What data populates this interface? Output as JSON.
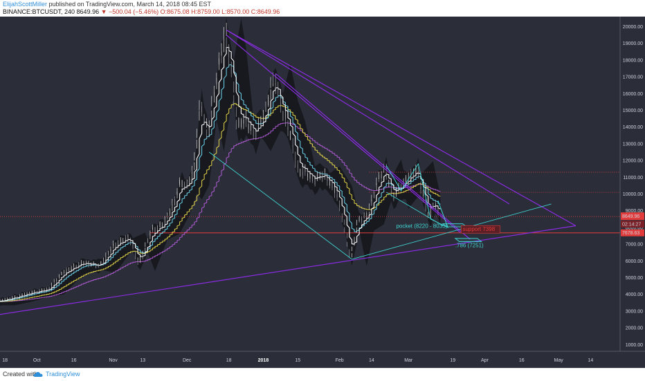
{
  "header": {
    "author": "ElijahScottMiller",
    "published": "published on TradingView.com, March 14, 2018 08:45 EST",
    "symbol": "BINANCE:BTCUSDT, 240",
    "last": "8649.96",
    "change": "▼ −500.04 (−5.46%)",
    "ohlc": "O:8675.08 H:8759.00 L:8570.00 C:8649.96"
  },
  "footer": {
    "created": "Created with",
    "brand": "TradingView"
  },
  "colors": {
    "bg": "#2b2e39",
    "axis_bg": "#2b2e39",
    "purple": "#8a2be2",
    "cyan": "#3fd3d0",
    "red": "#e23b3b",
    "price": "#d9d9d9",
    "ema_fast": "#ffffff",
    "ema_mid": "#6fd7f0",
    "ema_slow": "#e6d84a",
    "ema_long": "#b15bd6",
    "ichimoku": "#000000"
  },
  "chart_data": {
    "type": "line",
    "x_axis": {
      "type": "date",
      "range": [
        "2017-09-16",
        "2018-05-26"
      ],
      "ticks": [
        {
          "date": "2017-09-18",
          "label": "18"
        },
        {
          "date": "2017-10-01",
          "label": "Oct"
        },
        {
          "date": "2017-10-16",
          "label": "16"
        },
        {
          "date": "2017-11-01",
          "label": "Nov"
        },
        {
          "date": "2017-11-13",
          "label": "13"
        },
        {
          "date": "2017-12-01",
          "label": "Dec"
        },
        {
          "date": "2017-12-18",
          "label": "18"
        },
        {
          "date": "2018-01-01",
          "label": "2018",
          "bold": true
        },
        {
          "date": "2018-01-15",
          "label": "15"
        },
        {
          "date": "2018-02-01",
          "label": "Feb"
        },
        {
          "date": "2018-02-14",
          "label": "14"
        },
        {
          "date": "2018-03-01",
          "label": "Mar"
        },
        {
          "date": "2018-03-19",
          "label": "19"
        },
        {
          "date": "2018-04-01",
          "label": "Apr"
        },
        {
          "date": "2018-04-16",
          "label": "16"
        },
        {
          "date": "2018-05-01",
          "label": "May"
        },
        {
          "date": "2018-05-14",
          "label": "14"
        }
      ]
    },
    "y_axis": {
      "range": [
        600,
        20600
      ],
      "ticks": [
        1000,
        2000,
        3000,
        4000,
        5000,
        6000,
        7000,
        8000,
        9000,
        10000,
        11000,
        12000,
        13000,
        14000,
        15000,
        16000,
        17000,
        18000,
        19000,
        20000
      ]
    },
    "price_series": [
      [
        "2017-09-16",
        3600
      ],
      [
        "2017-09-22",
        3800
      ],
      [
        "2017-09-29",
        4100
      ],
      [
        "2017-10-06",
        4300
      ],
      [
        "2017-10-12",
        5300
      ],
      [
        "2017-10-20",
        5900
      ],
      [
        "2017-10-27",
        5700
      ],
      [
        "2017-11-02",
        7000
      ],
      [
        "2017-11-08",
        7400
      ],
      [
        "2017-11-12",
        5800
      ],
      [
        "2017-11-17",
        7800
      ],
      [
        "2017-11-22",
        8200
      ],
      [
        "2017-11-26",
        9400
      ],
      [
        "2017-11-29",
        10800
      ],
      [
        "2017-12-01",
        10400
      ],
      [
        "2017-12-04",
        11300
      ],
      [
        "2017-12-07",
        15500
      ],
      [
        "2017-12-10",
        13500
      ],
      [
        "2017-12-13",
        16500
      ],
      [
        "2017-12-17",
        19700
      ],
      [
        "2017-12-19",
        18000
      ],
      [
        "2017-12-22",
        14000
      ],
      [
        "2017-12-25",
        14500
      ],
      [
        "2017-12-29",
        13500
      ],
      [
        "2018-01-02",
        14800
      ],
      [
        "2018-01-06",
        17100
      ],
      [
        "2018-01-09",
        15000
      ],
      [
        "2018-01-12",
        13800
      ],
      [
        "2018-01-16",
        11200
      ],
      [
        "2018-01-18",
        11400
      ],
      [
        "2018-01-22",
        10800
      ],
      [
        "2018-01-26",
        11200
      ],
      [
        "2018-01-31",
        10100
      ],
      [
        "2018-02-03",
        8400
      ],
      [
        "2018-02-06",
        6100
      ],
      [
        "2018-02-09",
        8400
      ],
      [
        "2018-02-13",
        8800
      ],
      [
        "2018-02-17",
        10800
      ],
      [
        "2018-02-20",
        11600
      ],
      [
        "2018-02-23",
        9800
      ],
      [
        "2018-02-26",
        10400
      ],
      [
        "2018-03-01",
        10900
      ],
      [
        "2018-03-05",
        11500
      ],
      [
        "2018-03-08",
        9500
      ],
      [
        "2018-03-10",
        8600
      ],
      [
        "2018-03-12",
        9600
      ],
      [
        "2018-03-14",
        8650
      ]
    ],
    "current_price": {
      "value": 8649.96,
      "label": "8649.96",
      "countdown": "02:14:27"
    },
    "support_line": {
      "value": 7678.63,
      "label": "7678.63"
    },
    "red_dotted_levels": [
      10100,
      11300
    ],
    "trendlines": [
      {
        "name": "upper-wedge",
        "color": "purple",
        "points": [
          [
            "2017-12-17",
            19800
          ],
          [
            "2018-05-08",
            8100
          ]
        ]
      },
      {
        "name": "lower-support",
        "color": "purple",
        "points": [
          [
            "2017-09-16",
            2800
          ],
          [
            "2018-05-08",
            8100
          ]
        ]
      },
      {
        "name": "inner-down-1",
        "color": "purple",
        "points": [
          [
            "2017-12-17",
            19800
          ],
          [
            "2018-04-11",
            9400
          ]
        ]
      },
      {
        "name": "inner-down-2",
        "color": "purple",
        "points": [
          [
            "2017-12-17",
            19500
          ],
          [
            "2018-03-22",
            7700
          ]
        ]
      },
      {
        "name": "inner-down-3",
        "color": "purple",
        "points": [
          [
            "2018-01-06",
            17200
          ],
          [
            "2018-03-26",
            7300
          ]
        ]
      },
      {
        "name": "fib-down",
        "color": "cyan",
        "points": [
          [
            "2017-12-10",
            12500
          ],
          [
            "2018-02-06",
            6100
          ]
        ]
      },
      {
        "name": "fib-up",
        "color": "cyan",
        "points": [
          [
            "2018-02-06",
            6100
          ],
          [
            "2018-04-28",
            9400
          ]
        ]
      },
      {
        "name": "pattern-line",
        "color": "cyan",
        "points": [
          [
            "2018-02-20",
            10100
          ],
          [
            "2018-03-15",
            8100
          ]
        ]
      }
    ],
    "pattern": {
      "color": "cyan",
      "points": [
        [
          "2018-02-20",
          11700
        ],
        [
          "2018-02-26",
          10200
        ],
        [
          "2018-03-05",
          11800
        ],
        [
          "2018-03-10",
          8500
        ],
        [
          "2018-03-17",
          8000
        ],
        [
          "2018-03-13",
          9600
        ]
      ]
    },
    "zones": [
      {
        "name": "pocket",
        "color": "cyan",
        "x": [
          "2018-03-15",
          "2018-03-23"
        ],
        "y": [
          8035,
          8220
        ]
      },
      {
        "name": "786",
        "color": "cyan",
        "x": [
          "2018-03-20",
          "2018-03-29"
        ],
        "y": [
          7150,
          7350
        ]
      }
    ],
    "annotations": [
      {
        "text": "pocket (8220 - 8035)",
        "date": "2018-02-24",
        "value": 7980,
        "color": "cyan"
      },
      {
        "text": ".786 (7251)",
        "date": "2018-03-20",
        "value": 6820,
        "color": "cyan"
      },
      {
        "text": "support 7398",
        "date": "2018-03-23",
        "value": 7780,
        "color": "red"
      }
    ],
    "legend": "none",
    "grid": false
  }
}
